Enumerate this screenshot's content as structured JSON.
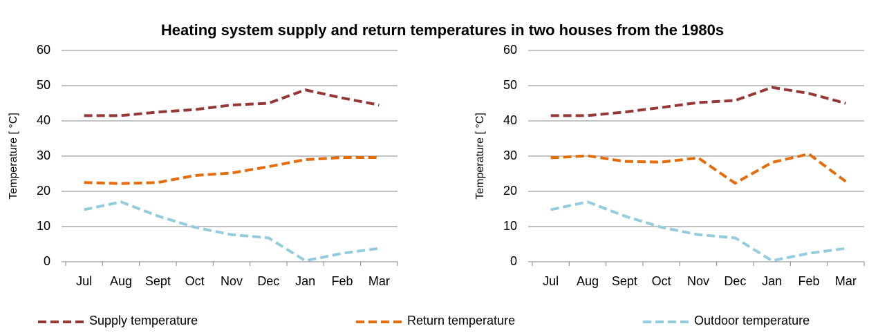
{
  "title": "Heating system supply and return temperatures in two houses from the 1980s",
  "chart_data": [
    {
      "type": "line",
      "ylabel": "Temperature [ °C]",
      "categories": [
        "Jul",
        "Aug",
        "Sept",
        "Oct",
        "Nov",
        "Dec",
        "Jan",
        "Feb",
        "Mar"
      ],
      "ylim": [
        0,
        60
      ],
      "yticks": [
        0,
        10,
        20,
        30,
        40,
        50,
        60
      ],
      "grid": true,
      "series": [
        {
          "name": "Supply temperature",
          "color": "#953735",
          "values": [
            41.5,
            41.5,
            42.5,
            43.2,
            44.5,
            45,
            48.8,
            46.5,
            44.5
          ]
        },
        {
          "name": "Return temperature",
          "color": "#e46c0a",
          "values": [
            22.5,
            22.2,
            22.5,
            24.5,
            25.2,
            27,
            29,
            29.6,
            29.6
          ]
        },
        {
          "name": "Outdoor temperature",
          "color": "#93cddd",
          "values": [
            14.8,
            17,
            13,
            9.8,
            7.7,
            6.8,
            0.3,
            2.4,
            3.8
          ]
        }
      ]
    },
    {
      "type": "line",
      "ylabel": "Temperature [ °C]",
      "categories": [
        "Jul",
        "Aug",
        "Sept",
        "Oct",
        "Nov",
        "Dec",
        "Jan",
        "Feb",
        "Mar"
      ],
      "ylim": [
        0,
        60
      ],
      "yticks": [
        0,
        10,
        20,
        30,
        40,
        50,
        60
      ],
      "grid": true,
      "series": [
        {
          "color": "#953735",
          "values": [
            41.5,
            41.5,
            42.5,
            43.8,
            45.2,
            45.8,
            49.5,
            47.8,
            45
          ]
        },
        {
          "color": "#e46c0a",
          "values": [
            29.5,
            30.1,
            28.5,
            28.3,
            29.5,
            22.3,
            28.2,
            30.6,
            22.8
          ]
        },
        {
          "color": "#93cddd",
          "values": [
            14.8,
            17,
            13,
            9.8,
            7.7,
            6.8,
            0.3,
            2.4,
            3.8
          ]
        }
      ]
    }
  ]
}
